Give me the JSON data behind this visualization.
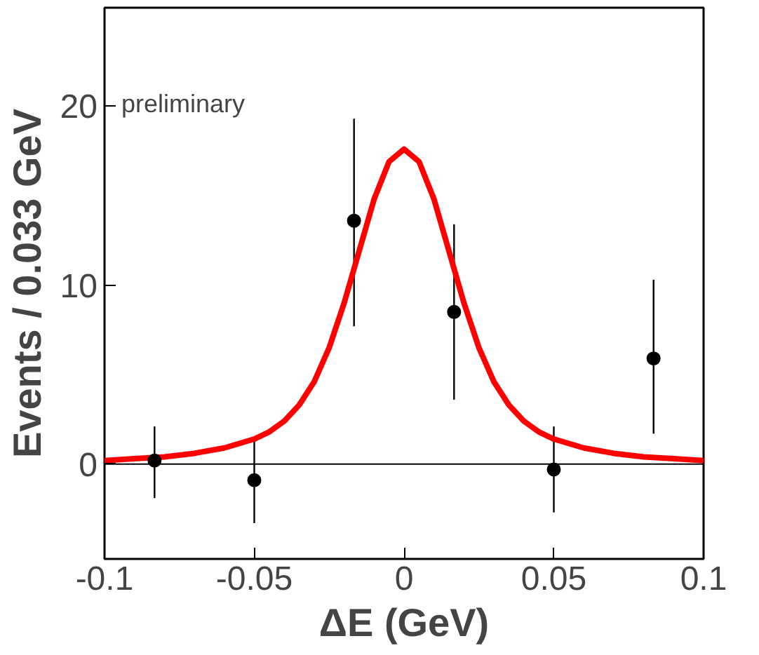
{
  "chart_data": {
    "type": "scatter",
    "xlabel": "ΔE (GeV)",
    "ylabel": "Events / 0.033 GeV",
    "annotations": [
      "preliminary"
    ],
    "xlim": [
      -0.1,
      0.1
    ],
    "ylim": [
      -5.3,
      25.5
    ],
    "xticks": [
      -0.1,
      -0.05,
      0,
      0.05,
      0.1
    ],
    "yticks": [
      0,
      10,
      20
    ],
    "grid": false,
    "marker": "circle",
    "ref_lines": [
      {
        "axis": "y",
        "value": 0,
        "color": "#000000"
      }
    ],
    "series": [
      {
        "color": "#000000",
        "x": [
          -0.0833,
          -0.05,
          -0.0167,
          0.0167,
          0.05,
          0.0833
        ],
        "values": [
          0.2,
          -0.9,
          13.6,
          8.5,
          -0.3,
          5.9
        ],
        "errors": [
          [
            -1.9,
            2.1
          ],
          [
            -3.3,
            1.4
          ],
          [
            7.7,
            19.3
          ],
          [
            3.6,
            13.4
          ],
          [
            -2.7,
            2.1
          ],
          [
            1.7,
            10.3
          ]
        ]
      },
      {
        "type": "line",
        "color": "#ff0000",
        "marker": "none",
        "line_style": "solid",
        "x": [
          -0.1,
          -0.09,
          -0.08,
          -0.07,
          -0.06,
          -0.05,
          -0.045,
          -0.04,
          -0.035,
          -0.03,
          -0.025,
          -0.02,
          -0.015,
          -0.01,
          -0.005,
          0,
          0.005,
          0.01,
          0.015,
          0.02,
          0.025,
          0.03,
          0.035,
          0.04,
          0.045,
          0.05,
          0.06,
          0.07,
          0.08,
          0.09,
          0.1
        ],
        "values": [
          0.2,
          0.3,
          0.4,
          0.6,
          0.9,
          1.4,
          1.8,
          2.4,
          3.3,
          4.6,
          6.5,
          9.0,
          11.9,
          14.8,
          16.9,
          17.6,
          16.9,
          14.8,
          11.9,
          9.0,
          6.5,
          4.6,
          3.3,
          2.4,
          1.8,
          1.4,
          0.9,
          0.6,
          0.4,
          0.3,
          0.2
        ]
      }
    ]
  }
}
